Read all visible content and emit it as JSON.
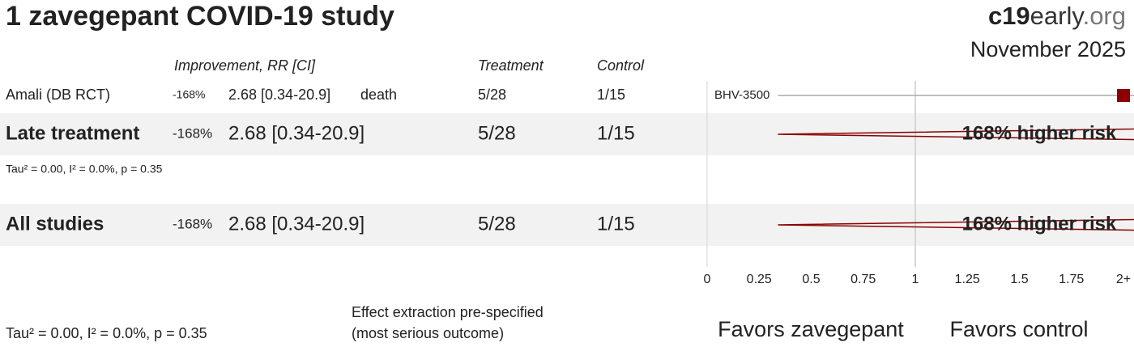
{
  "title": "1 zavegepant COVID-19 study",
  "brand": {
    "bold": "c19",
    "mid": "early",
    "light": ".org"
  },
  "date": "November 2025",
  "columns": {
    "improvement": "Improvement, RR [CI]",
    "treatment": "Treatment",
    "control": "Control"
  },
  "notes": [
    "Effect extraction pre-specified",
    "(most serious outcome)"
  ],
  "footer_stats": "Tau² = 0.00, I² = 0.0%, p = 0.35",
  "chart_data": {
    "type": "forest",
    "rows": [
      {
        "name": "Amali (DB RCT)",
        "kind": "study",
        "improvement": "-168%",
        "rr": 2.68,
        "ci": [
          0.34,
          20.9
        ],
        "rr_label": "2.68 [0.34-20.9]",
        "outcome": "death",
        "treatment": "5/28",
        "control": "1/15",
        "plot_label": "BHV-3500"
      },
      {
        "name": "Late treatment",
        "kind": "summary",
        "improvement": "-168%",
        "rr": 2.68,
        "ci": [
          0.34,
          20.9
        ],
        "rr_label": "2.68 [0.34-20.9]",
        "treatment": "5/28",
        "control": "1/15",
        "annotation": "168% higher risk",
        "stats": "Tau² = 0.00, I² = 0.0%, p = 0.35"
      },
      {
        "name": "All studies",
        "kind": "summary",
        "improvement": "-168%",
        "rr": 2.68,
        "ci": [
          0.34,
          20.9
        ],
        "rr_label": "2.68 [0.34-20.9]",
        "treatment": "5/28",
        "control": "1/15",
        "annotation": "168% higher risk"
      }
    ],
    "xlim": [
      0,
      2
    ],
    "xticks": [
      0,
      0.25,
      0.5,
      0.75,
      1,
      1.25,
      1.5,
      1.75,
      {
        "value": 2,
        "label": "2+"
      }
    ],
    "favors": {
      "left": "Favors zavegepant",
      "right": "Favors control"
    },
    "colors": {
      "marker": "#8b0000",
      "improvement": "#8b0000",
      "favors_left": "#2e5d8f",
      "favors_right": "#444444"
    }
  }
}
